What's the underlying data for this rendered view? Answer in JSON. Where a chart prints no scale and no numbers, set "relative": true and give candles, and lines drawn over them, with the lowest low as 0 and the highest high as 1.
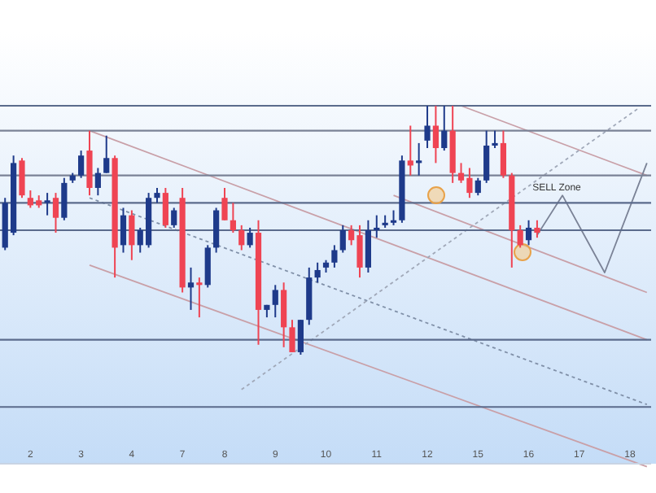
{
  "chart_data": {
    "type": "candlestick",
    "relative": true,
    "categories": [
      null,
      null,
      null,
      "2",
      null,
      null,
      null,
      null,
      null,
      "3",
      null,
      null,
      null,
      null,
      null,
      "4",
      null,
      null,
      null,
      null,
      null,
      "7",
      null,
      null,
      null,
      null,
      "8",
      null,
      null,
      null,
      null,
      null,
      "9",
      null,
      null,
      null,
      null,
      null,
      "10",
      null,
      null,
      null,
      null,
      null,
      "11",
      null,
      null,
      null,
      null,
      null,
      "12",
      null,
      null,
      null,
      null,
      null,
      "15",
      null,
      null,
      null,
      null,
      null,
      "16",
      null,
      null,
      null,
      null,
      null,
      "17",
      null,
      null,
      null,
      null,
      null,
      "18",
      null,
      null
    ],
    "ohlc": [
      [
        0.43,
        0.63,
        0.42,
        0.61
      ],
      [
        0.49,
        0.8,
        0.48,
        0.77
      ],
      [
        0.78,
        0.79,
        0.63,
        0.64
      ],
      [
        0.63,
        0.66,
        0.59,
        0.6
      ],
      [
        0.62,
        0.64,
        0.59,
        0.6
      ],
      [
        0.61,
        0.65,
        0.56,
        0.62
      ],
      [
        0.63,
        0.65,
        0.49,
        0.55
      ],
      [
        0.55,
        0.71,
        0.54,
        0.69
      ],
      [
        0.7,
        0.73,
        0.69,
        0.72
      ],
      [
        0.72,
        0.82,
        0.71,
        0.8
      ],
      [
        0.82,
        0.9,
        0.64,
        0.67
      ],
      [
        0.67,
        0.75,
        0.64,
        0.73
      ],
      [
        0.73,
        0.88,
        0.73,
        0.79
      ],
      [
        0.79,
        0.8,
        0.31,
        0.43
      ],
      [
        0.44,
        0.59,
        0.41,
        0.56
      ],
      [
        0.56,
        0.58,
        0.38,
        0.44
      ],
      [
        0.44,
        0.51,
        0.41,
        0.5
      ],
      [
        0.44,
        0.65,
        0.43,
        0.63
      ],
      [
        0.63,
        0.67,
        0.61,
        0.65
      ],
      [
        0.65,
        0.67,
        0.51,
        0.52
      ],
      [
        0.52,
        0.59,
        0.51,
        0.58
      ],
      [
        0.63,
        0.67,
        0.25,
        0.27
      ],
      [
        0.27,
        0.35,
        0.18,
        0.29
      ],
      [
        0.29,
        0.31,
        0.15,
        0.28
      ],
      [
        0.28,
        0.44,
        0.27,
        0.43
      ],
      [
        0.43,
        0.59,
        0.41,
        0.58
      ],
      [
        0.63,
        0.67,
        0.54,
        0.54
      ],
      [
        0.54,
        0.61,
        0.49,
        0.5
      ],
      [
        0.5,
        0.52,
        0.42,
        0.44
      ],
      [
        0.44,
        0.51,
        0.43,
        0.49
      ],
      [
        0.49,
        0.54,
        0.04,
        0.18
      ],
      [
        0.18,
        0.2,
        0.15,
        0.2
      ],
      [
        0.2,
        0.28,
        0.15,
        0.26
      ],
      [
        0.26,
        0.29,
        0.03,
        0.11
      ],
      [
        0.11,
        0.14,
        0.01,
        0.01
      ],
      [
        0.01,
        0.14,
        0,
        0.14
      ],
      [
        0.14,
        0.35,
        0.12,
        0.31
      ],
      [
        0.31,
        0.37,
        0.29,
        0.34
      ],
      [
        0.35,
        0.38,
        0.33,
        0.37
      ],
      [
        0.37,
        0.44,
        0.35,
        0.42
      ],
      [
        0.42,
        0.52,
        0.41,
        0.5
      ],
      [
        0.5,
        0.52,
        0.44,
        0.46
      ],
      [
        0.48,
        0.52,
        0.31,
        0.35
      ],
      [
        0.35,
        0.54,
        0.33,
        0.5
      ],
      [
        0.5,
        0.56,
        0.47,
        0.51
      ],
      [
        0.52,
        0.56,
        0.51,
        0.53
      ],
      [
        0.53,
        0.58,
        0.52,
        0.54
      ],
      [
        0.54,
        0.8,
        0.53,
        0.78
      ],
      [
        0.78,
        0.92,
        0.72,
        0.76
      ],
      [
        0.77,
        0.85,
        0.72,
        0.78
      ],
      [
        0.86,
        1.0,
        0.83,
        0.92
      ],
      [
        0.92,
        1.0,
        0.77,
        0.83
      ],
      [
        0.83,
        1.0,
        0.82,
        0.9
      ],
      [
        0.9,
        1.0,
        0.69,
        0.73
      ],
      [
        0.73,
        0.77,
        0.69,
        0.7
      ],
      [
        0.71,
        0.75,
        0.63,
        0.65
      ],
      [
        0.65,
        0.71,
        0.64,
        0.7
      ],
      [
        0.7,
        0.9,
        0.69,
        0.84
      ],
      [
        0.84,
        0.9,
        0.83,
        0.85
      ],
      [
        0.85,
        0.9,
        0.71,
        0.72
      ],
      [
        0.72,
        0.73,
        0.35,
        0.5
      ],
      [
        0.5,
        0.52,
        0.43,
        0.44
      ],
      [
        0.46,
        0.54,
        0.44,
        0.51
      ],
      [
        0.51,
        0.54,
        0.47,
        0.49
      ],
      null,
      null,
      null,
      null,
      null,
      null,
      null,
      null,
      null,
      null,
      null,
      null,
      null
    ],
    "colors": [
      "#1e3a8a",
      "#1e3a8a",
      "#ef4453",
      "#ef4453",
      "#ef4453",
      "#1e3a8a",
      "#ef4453",
      "#1e3a8a",
      "#1e3a8a",
      "#1e3a8a",
      "#ef4453",
      "#1e3a8a",
      "#1e3a8a",
      "#ef4453",
      "#1e3a8a",
      "#ef4453",
      "#1e3a8a",
      "#1e3a8a",
      "#1e3a8a",
      "#ef4453",
      "#1e3a8a",
      "#ef4453",
      "#1e3a8a",
      "#ef4453",
      "#1e3a8a",
      "#1e3a8a",
      "#ef4453",
      "#ef4453",
      "#ef4453",
      "#1e3a8a",
      "#ef4453",
      "#1e3a8a",
      "#1e3a8a",
      "#ef4453",
      "#ef4453",
      "#1e3a8a",
      "#1e3a8a",
      "#1e3a8a",
      "#1e3a8a",
      "#1e3a8a",
      "#1e3a8a",
      "#ef4453",
      "#ef4453",
      "#1e3a8a",
      "#1e3a8a",
      "#1e3a8a",
      "#1e3a8a",
      "#1e3a8a",
      "#ef4453",
      "#1e3a8a",
      "#1e3a8a",
      "#ef4453",
      "#1e3a8a",
      "#ef4453",
      "#ef4453",
      "#ef4453",
      "#1e3a8a",
      "#1e3a8a",
      "#1e3a8a",
      "#ef4453",
      "#ef4453",
      "#ef4453",
      "#1e3a8a",
      "#ef4453",
      null,
      null,
      null,
      null,
      null,
      null,
      null,
      null,
      null,
      null,
      null,
      null,
      null
    ],
    "ref_lines": [
      {
        "axis": "y",
        "value": 1.0,
        "color": "#5b6b8c"
      },
      {
        "axis": "y",
        "value": 0.9,
        "color": "#7a8296"
      },
      {
        "axis": "y",
        "value": 0.72,
        "color": "#7a8296"
      },
      {
        "axis": "y",
        "value": 0.61,
        "color": "#5b6b8c"
      },
      {
        "axis": "y",
        "value": 0.5,
        "color": "#5b6b8c"
      },
      {
        "axis": "y",
        "value": 0.06,
        "color": "#5b6b8c"
      },
      {
        "axis": "y",
        "value": -0.21,
        "color": "#5b6b8c"
      }
    ],
    "series": [
      {
        "type": "line",
        "color": "#c9a0a8",
        "values": [
          null,
          null,
          null,
          null,
          null,
          null,
          null,
          null,
          null,
          null,
          0.9,
          null,
          null,
          null,
          null,
          null,
          null,
          null,
          null,
          null,
          null,
          null,
          null,
          null,
          null,
          null,
          null,
          null,
          null,
          null,
          null,
          null,
          null,
          null,
          null,
          null,
          null,
          null,
          null,
          null,
          null,
          null,
          null,
          null,
          null,
          null,
          null,
          null,
          null,
          null,
          null,
          null,
          null,
          null,
          null,
          null,
          null,
          null,
          null,
          null,
          null,
          null,
          null,
          null,
          null,
          null,
          null,
          null,
          null,
          null,
          null,
          null,
          null,
          null,
          null,
          null,
          0.06
        ]
      },
      {
        "type": "line",
        "color": "#c9a0a8",
        "values": [
          null,
          null,
          null,
          null,
          null,
          null,
          null,
          null,
          null,
          null,
          0.36,
          null,
          null,
          null,
          null,
          null,
          null,
          null,
          null,
          null,
          null,
          null,
          null,
          null,
          null,
          null,
          null,
          null,
          null,
          null,
          null,
          null,
          null,
          null,
          null,
          null,
          null,
          null,
          null,
          null,
          null,
          null,
          null,
          null,
          null,
          null,
          null,
          null,
          null,
          null,
          null,
          null,
          null,
          null,
          null,
          null,
          null,
          null,
          null,
          null,
          null,
          null,
          null,
          null,
          null,
          null,
          null,
          null,
          null,
          null,
          null,
          null,
          null,
          null,
          null,
          null,
          -0.45
        ]
      },
      {
        "type": "line",
        "color": "#8090a8",
        "line_style": "dashed",
        "values": [
          null,
          null,
          null,
          null,
          null,
          null,
          null,
          null,
          null,
          null,
          0.63,
          null,
          null,
          null,
          null,
          null,
          null,
          null,
          null,
          null,
          null,
          null,
          null,
          null,
          null,
          null,
          null,
          null,
          null,
          null,
          null,
          null,
          null,
          null,
          null,
          null,
          null,
          null,
          null,
          null,
          null,
          null,
          null,
          null,
          null,
          null,
          null,
          null,
          null,
          null,
          null,
          null,
          null,
          null,
          null,
          null,
          null,
          null,
          null,
          null,
          null,
          null,
          null,
          null,
          null,
          null,
          null,
          null,
          null,
          null,
          null,
          null,
          null,
          null,
          null,
          null,
          -0.2
        ]
      },
      {
        "type": "line",
        "color": "#c9a0a8",
        "values": [
          null,
          null,
          null,
          null,
          null,
          null,
          null,
          null,
          null,
          null,
          null,
          null,
          null,
          null,
          null,
          null,
          null,
          null,
          null,
          null,
          null,
          null,
          null,
          null,
          null,
          null,
          null,
          null,
          null,
          null,
          null,
          null,
          null,
          null,
          null,
          null,
          null,
          null,
          null,
          null,
          null,
          null,
          null,
          null,
          null,
          null,
          null,
          null,
          null,
          null,
          null,
          null,
          null,
          null,
          1.0,
          null,
          null,
          null,
          null,
          null,
          null,
          null,
          null,
          null,
          null,
          null,
          null,
          null,
          null,
          null,
          null,
          null,
          null,
          null,
          null,
          null,
          0.72
        ]
      },
      {
        "type": "line",
        "color": "#c9a0a8",
        "values": [
          null,
          null,
          null,
          null,
          null,
          null,
          null,
          null,
          null,
          null,
          null,
          null,
          null,
          null,
          null,
          null,
          null,
          null,
          null,
          null,
          null,
          null,
          null,
          null,
          null,
          null,
          null,
          null,
          null,
          null,
          null,
          null,
          null,
          null,
          null,
          null,
          null,
          null,
          null,
          null,
          null,
          null,
          null,
          null,
          null,
          null,
          0.64,
          null,
          null,
          null,
          null,
          null,
          null,
          null,
          null,
          null,
          null,
          null,
          null,
          null,
          null,
          null,
          null,
          null,
          null,
          null,
          null,
          null,
          null,
          null,
          null,
          null,
          null,
          null,
          null,
          null,
          0.25
        ]
      },
      {
        "type": "line",
        "color": "#a0a8b8",
        "line_style": "dashed",
        "values": [
          null,
          null,
          null,
          null,
          null,
          null,
          null,
          null,
          null,
          null,
          null,
          null,
          null,
          null,
          null,
          null,
          null,
          null,
          null,
          null,
          null,
          null,
          null,
          null,
          null,
          null,
          null,
          null,
          -0.14,
          null,
          null,
          null,
          null,
          null,
          null,
          null,
          null,
          null,
          null,
          null,
          null,
          null,
          null,
          null,
          null,
          null,
          null,
          null,
          null,
          null,
          null,
          null,
          null,
          null,
          null,
          null,
          null,
          null,
          null,
          null,
          null,
          null,
          null,
          null,
          null,
          null,
          null,
          null,
          null,
          null,
          null,
          null,
          null,
          null,
          null,
          0.99,
          null
        ]
      },
      {
        "type": "line",
        "color": "#7a8296",
        "values": [
          null,
          null,
          null,
          null,
          null,
          null,
          null,
          null,
          null,
          null,
          null,
          null,
          null,
          null,
          null,
          null,
          null,
          null,
          null,
          null,
          null,
          null,
          null,
          null,
          null,
          null,
          null,
          null,
          null,
          null,
          null,
          null,
          null,
          null,
          null,
          null,
          null,
          null,
          null,
          null,
          null,
          null,
          null,
          null,
          null,
          null,
          null,
          null,
          null,
          null,
          null,
          null,
          null,
          null,
          null,
          null,
          null,
          null,
          null,
          null,
          null,
          null,
          null,
          0.48,
          null,
          null,
          0.64,
          null,
          null,
          null,
          null,
          0.33,
          null,
          null,
          null,
          null,
          0.77
        ]
      }
    ],
    "annotations": [
      "SELL Zone"
    ]
  }
}
